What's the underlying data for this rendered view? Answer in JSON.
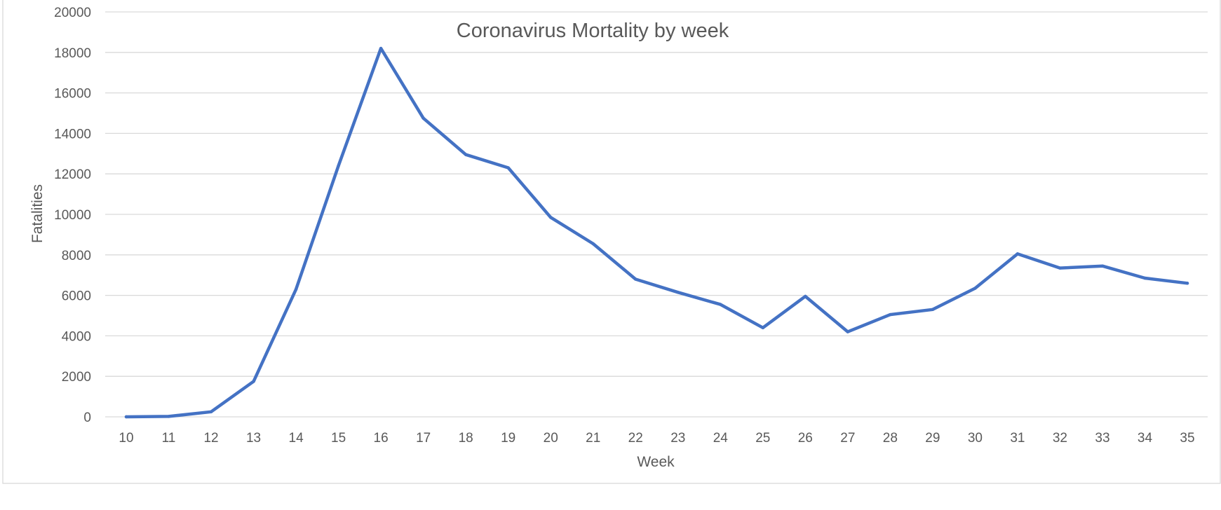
{
  "chart_data": {
    "type": "line",
    "title": "Coronavirus Mortality by week",
    "xlabel": "Week",
    "ylabel": "Fatalities",
    "categories": [
      "10",
      "11",
      "12",
      "13",
      "14",
      "15",
      "16",
      "17",
      "18",
      "19",
      "20",
      "21",
      "22",
      "23",
      "24",
      "25",
      "26",
      "27",
      "28",
      "29",
      "30",
      "31",
      "32",
      "33",
      "34",
      "35"
    ],
    "series": [
      {
        "values": [
          0,
          20,
          250,
          1750,
          6300,
          12400,
          18200,
          14750,
          12950,
          12300,
          9850,
          8550,
          6800,
          6150,
          5550,
          4400,
          5950,
          4200,
          5050,
          5300,
          6350,
          8050,
          7350,
          7450,
          6850,
          6600
        ],
        "color": "#4472c4"
      }
    ],
    "ylim": [
      0,
      20000
    ],
    "yticks": [
      "0",
      "2000",
      "4000",
      "6000",
      "8000",
      "10000",
      "12000",
      "14000",
      "16000",
      "18000",
      "20000"
    ],
    "grid": true,
    "legend": "none"
  }
}
